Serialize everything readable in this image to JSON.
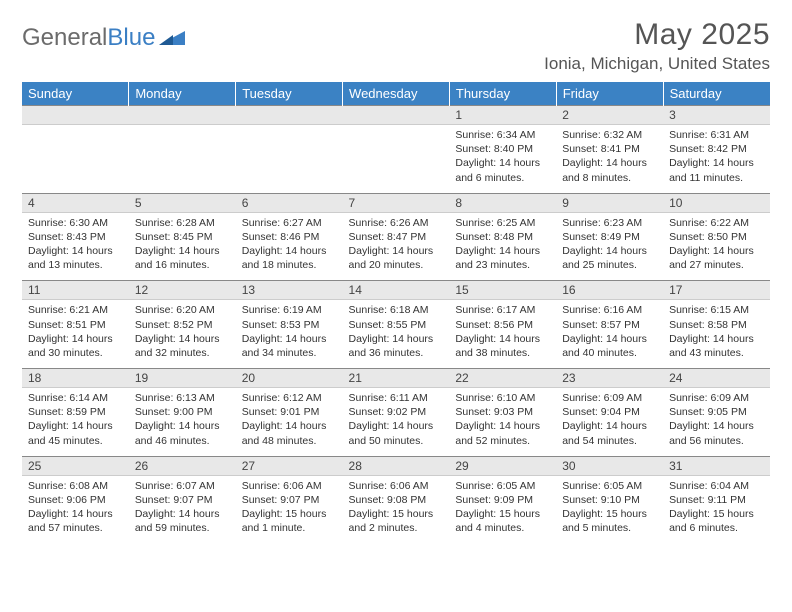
{
  "brand": {
    "part1": "General",
    "part2": "Blue"
  },
  "title": "May 2025",
  "location": "Ionia, Michigan, United States",
  "colors": {
    "header_bg": "#3b82c4",
    "daynum_bg": "#e8e8e8",
    "border_top": "#888888",
    "text": "#333333",
    "brand_gray": "#6b6b6b",
    "brand_blue": "#3b7fc4"
  },
  "day_headers": [
    "Sunday",
    "Monday",
    "Tuesday",
    "Wednesday",
    "Thursday",
    "Friday",
    "Saturday"
  ],
  "weeks": [
    {
      "nums": [
        "",
        "",
        "",
        "",
        "1",
        "2",
        "3"
      ],
      "cells": [
        null,
        null,
        null,
        null,
        {
          "sunrise": "Sunrise: 6:34 AM",
          "sunset": "Sunset: 8:40 PM",
          "day1": "Daylight: 14 hours",
          "day2": "and 6 minutes."
        },
        {
          "sunrise": "Sunrise: 6:32 AM",
          "sunset": "Sunset: 8:41 PM",
          "day1": "Daylight: 14 hours",
          "day2": "and 8 minutes."
        },
        {
          "sunrise": "Sunrise: 6:31 AM",
          "sunset": "Sunset: 8:42 PM",
          "day1": "Daylight: 14 hours",
          "day2": "and 11 minutes."
        }
      ]
    },
    {
      "nums": [
        "4",
        "5",
        "6",
        "7",
        "8",
        "9",
        "10"
      ],
      "cells": [
        {
          "sunrise": "Sunrise: 6:30 AM",
          "sunset": "Sunset: 8:43 PM",
          "day1": "Daylight: 14 hours",
          "day2": "and 13 minutes."
        },
        {
          "sunrise": "Sunrise: 6:28 AM",
          "sunset": "Sunset: 8:45 PM",
          "day1": "Daylight: 14 hours",
          "day2": "and 16 minutes."
        },
        {
          "sunrise": "Sunrise: 6:27 AM",
          "sunset": "Sunset: 8:46 PM",
          "day1": "Daylight: 14 hours",
          "day2": "and 18 minutes."
        },
        {
          "sunrise": "Sunrise: 6:26 AM",
          "sunset": "Sunset: 8:47 PM",
          "day1": "Daylight: 14 hours",
          "day2": "and 20 minutes."
        },
        {
          "sunrise": "Sunrise: 6:25 AM",
          "sunset": "Sunset: 8:48 PM",
          "day1": "Daylight: 14 hours",
          "day2": "and 23 minutes."
        },
        {
          "sunrise": "Sunrise: 6:23 AM",
          "sunset": "Sunset: 8:49 PM",
          "day1": "Daylight: 14 hours",
          "day2": "and 25 minutes."
        },
        {
          "sunrise": "Sunrise: 6:22 AM",
          "sunset": "Sunset: 8:50 PM",
          "day1": "Daylight: 14 hours",
          "day2": "and 27 minutes."
        }
      ]
    },
    {
      "nums": [
        "11",
        "12",
        "13",
        "14",
        "15",
        "16",
        "17"
      ],
      "cells": [
        {
          "sunrise": "Sunrise: 6:21 AM",
          "sunset": "Sunset: 8:51 PM",
          "day1": "Daylight: 14 hours",
          "day2": "and 30 minutes."
        },
        {
          "sunrise": "Sunrise: 6:20 AM",
          "sunset": "Sunset: 8:52 PM",
          "day1": "Daylight: 14 hours",
          "day2": "and 32 minutes."
        },
        {
          "sunrise": "Sunrise: 6:19 AM",
          "sunset": "Sunset: 8:53 PM",
          "day1": "Daylight: 14 hours",
          "day2": "and 34 minutes."
        },
        {
          "sunrise": "Sunrise: 6:18 AM",
          "sunset": "Sunset: 8:55 PM",
          "day1": "Daylight: 14 hours",
          "day2": "and 36 minutes."
        },
        {
          "sunrise": "Sunrise: 6:17 AM",
          "sunset": "Sunset: 8:56 PM",
          "day1": "Daylight: 14 hours",
          "day2": "and 38 minutes."
        },
        {
          "sunrise": "Sunrise: 6:16 AM",
          "sunset": "Sunset: 8:57 PM",
          "day1": "Daylight: 14 hours",
          "day2": "and 40 minutes."
        },
        {
          "sunrise": "Sunrise: 6:15 AM",
          "sunset": "Sunset: 8:58 PM",
          "day1": "Daylight: 14 hours",
          "day2": "and 43 minutes."
        }
      ]
    },
    {
      "nums": [
        "18",
        "19",
        "20",
        "21",
        "22",
        "23",
        "24"
      ],
      "cells": [
        {
          "sunrise": "Sunrise: 6:14 AM",
          "sunset": "Sunset: 8:59 PM",
          "day1": "Daylight: 14 hours",
          "day2": "and 45 minutes."
        },
        {
          "sunrise": "Sunrise: 6:13 AM",
          "sunset": "Sunset: 9:00 PM",
          "day1": "Daylight: 14 hours",
          "day2": "and 46 minutes."
        },
        {
          "sunrise": "Sunrise: 6:12 AM",
          "sunset": "Sunset: 9:01 PM",
          "day1": "Daylight: 14 hours",
          "day2": "and 48 minutes."
        },
        {
          "sunrise": "Sunrise: 6:11 AM",
          "sunset": "Sunset: 9:02 PM",
          "day1": "Daylight: 14 hours",
          "day2": "and 50 minutes."
        },
        {
          "sunrise": "Sunrise: 6:10 AM",
          "sunset": "Sunset: 9:03 PM",
          "day1": "Daylight: 14 hours",
          "day2": "and 52 minutes."
        },
        {
          "sunrise": "Sunrise: 6:09 AM",
          "sunset": "Sunset: 9:04 PM",
          "day1": "Daylight: 14 hours",
          "day2": "and 54 minutes."
        },
        {
          "sunrise": "Sunrise: 6:09 AM",
          "sunset": "Sunset: 9:05 PM",
          "day1": "Daylight: 14 hours",
          "day2": "and 56 minutes."
        }
      ]
    },
    {
      "nums": [
        "25",
        "26",
        "27",
        "28",
        "29",
        "30",
        "31"
      ],
      "cells": [
        {
          "sunrise": "Sunrise: 6:08 AM",
          "sunset": "Sunset: 9:06 PM",
          "day1": "Daylight: 14 hours",
          "day2": "and 57 minutes."
        },
        {
          "sunrise": "Sunrise: 6:07 AM",
          "sunset": "Sunset: 9:07 PM",
          "day1": "Daylight: 14 hours",
          "day2": "and 59 minutes."
        },
        {
          "sunrise": "Sunrise: 6:06 AM",
          "sunset": "Sunset: 9:07 PM",
          "day1": "Daylight: 15 hours",
          "day2": "and 1 minute."
        },
        {
          "sunrise": "Sunrise: 6:06 AM",
          "sunset": "Sunset: 9:08 PM",
          "day1": "Daylight: 15 hours",
          "day2": "and 2 minutes."
        },
        {
          "sunrise": "Sunrise: 6:05 AM",
          "sunset": "Sunset: 9:09 PM",
          "day1": "Daylight: 15 hours",
          "day2": "and 4 minutes."
        },
        {
          "sunrise": "Sunrise: 6:05 AM",
          "sunset": "Sunset: 9:10 PM",
          "day1": "Daylight: 15 hours",
          "day2": "and 5 minutes."
        },
        {
          "sunrise": "Sunrise: 6:04 AM",
          "sunset": "Sunset: 9:11 PM",
          "day1": "Daylight: 15 hours",
          "day2": "and 6 minutes."
        }
      ]
    }
  ]
}
